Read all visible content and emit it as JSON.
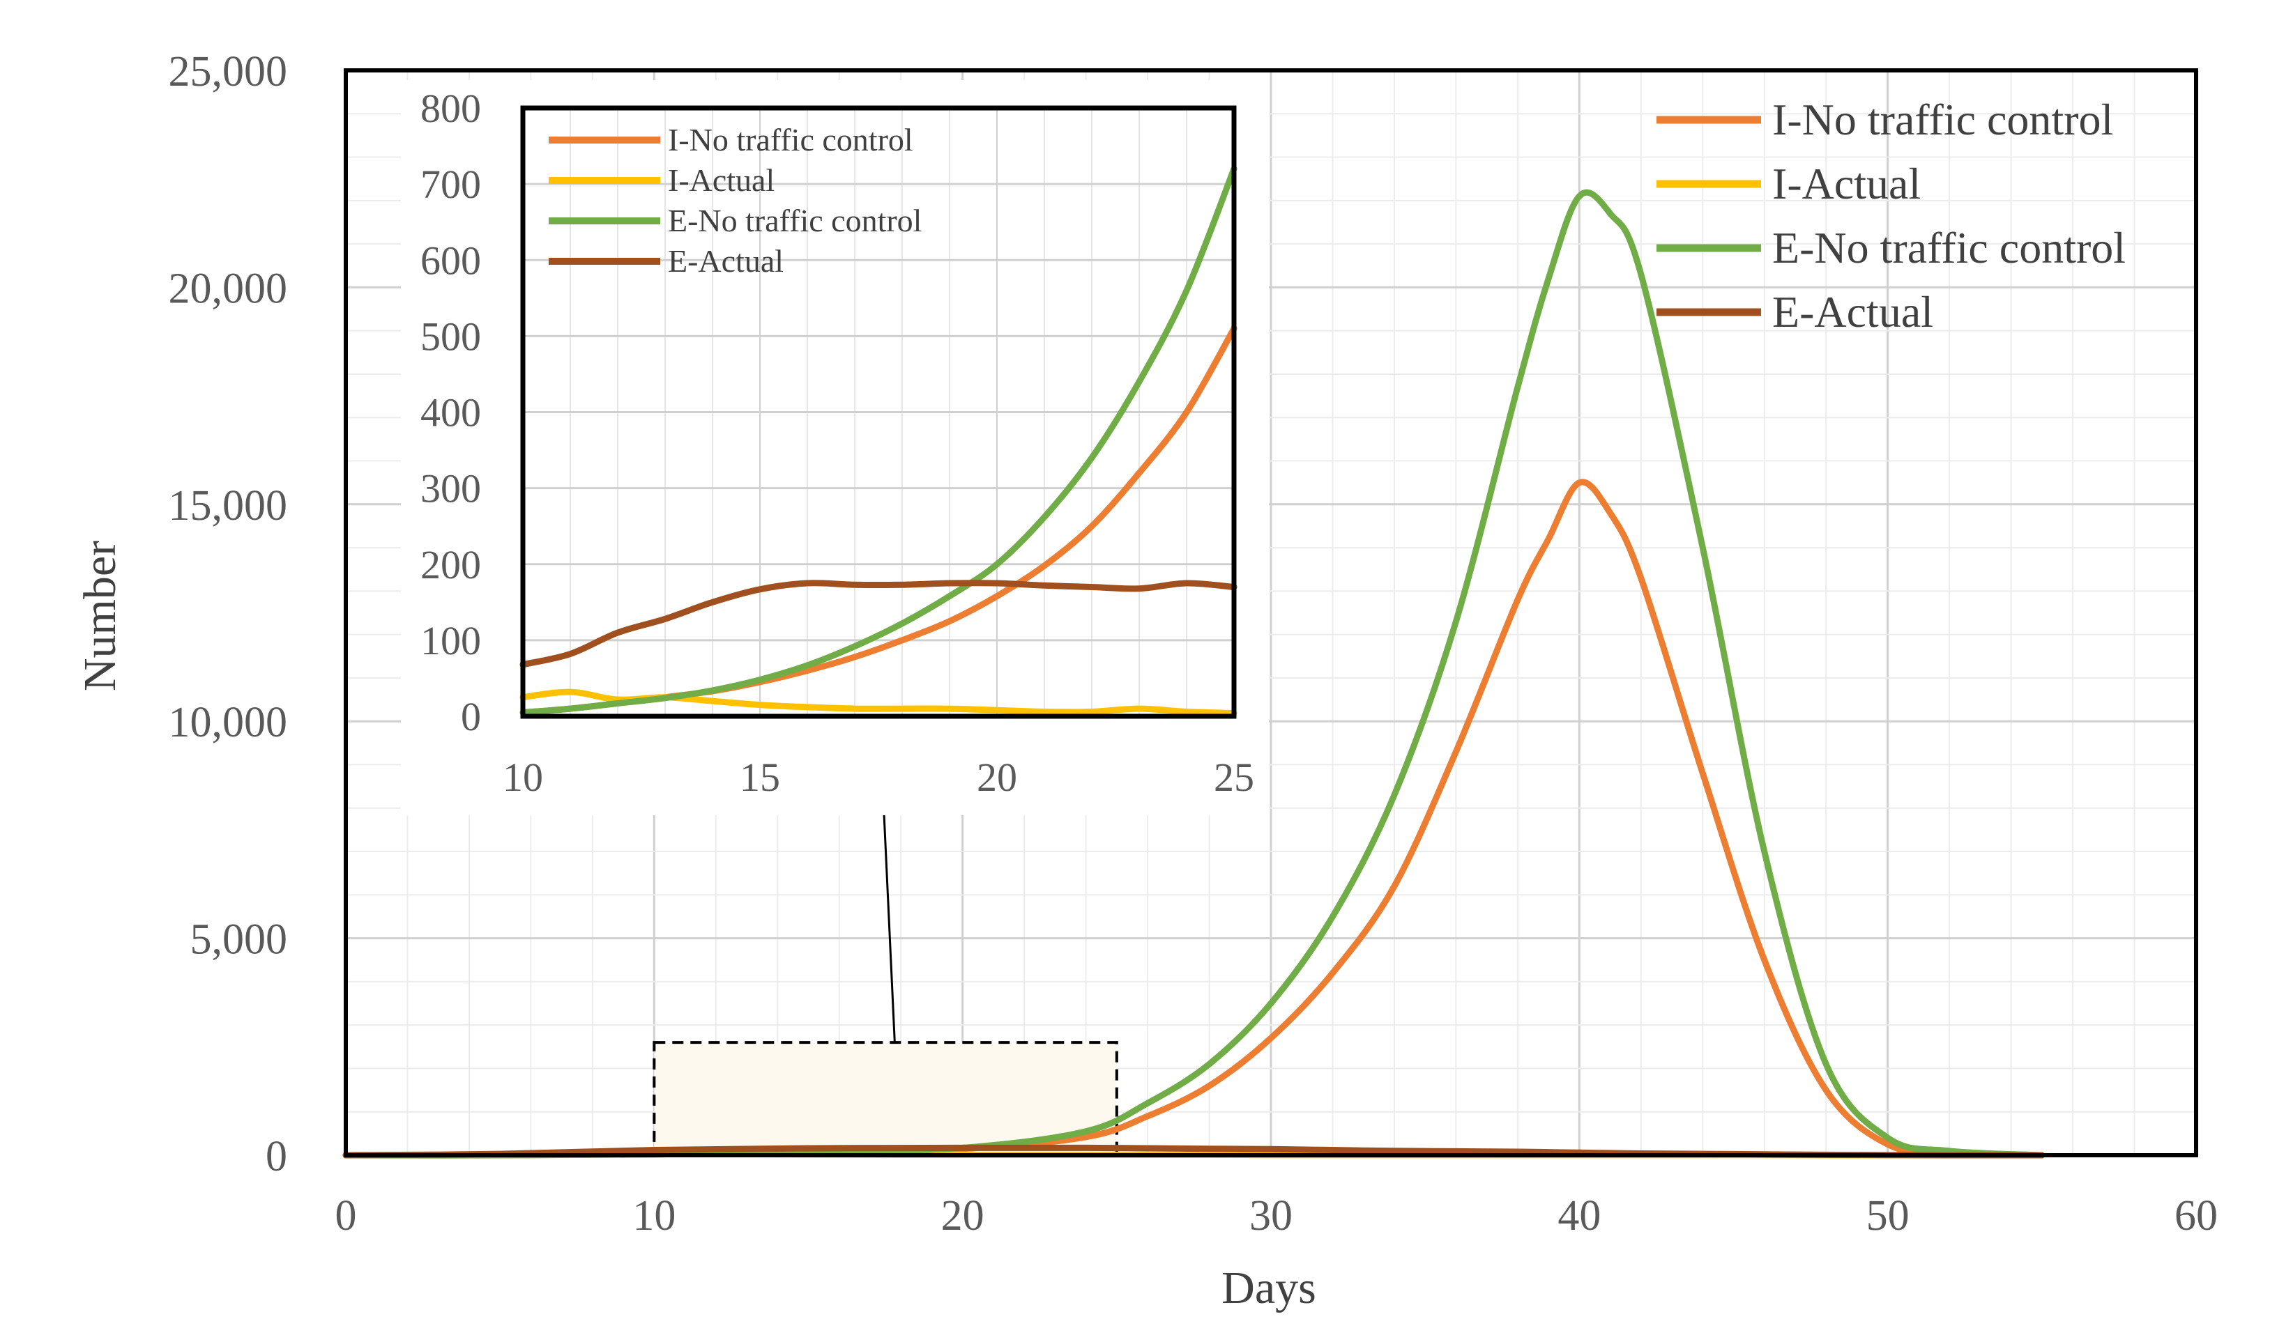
{
  "chart_data": [
    {
      "id": "main",
      "type": "line",
      "title": "",
      "xlabel": "Days",
      "ylabel": "Number",
      "xlim": [
        0,
        60
      ],
      "ylim": [
        0,
        25000
      ],
      "xticks": [
        0,
        10,
        20,
        30,
        40,
        50,
        60
      ],
      "xtick_labels": [
        "0",
        "10",
        "20",
        "30",
        "40",
        "50",
        "60"
      ],
      "yticks": [
        0,
        5000,
        10000,
        15000,
        20000,
        25000
      ],
      "ytick_labels": [
        "0",
        "5,000",
        "10,000",
        "15,000",
        "20,000",
        "25,000"
      ],
      "grid": true,
      "legend_position": "top-right",
      "zoom_region": {
        "x": [
          10,
          25
        ],
        "y": [
          0,
          2600
        ]
      },
      "x": [
        0,
        5,
        10,
        15,
        20,
        24,
        26,
        28,
        30,
        32,
        34,
        36,
        38,
        39,
        40,
        41,
        42,
        44,
        46,
        48,
        50,
        52,
        55
      ],
      "series": [
        {
          "name": "I-No traffic control",
          "color": "#ED7D31",
          "values": [
            0,
            0,
            20,
            70,
            150,
            420,
            900,
            1600,
            2700,
            4200,
            6200,
            9300,
            12800,
            14200,
            15500,
            14800,
            13300,
            8800,
            4500,
            1500,
            250,
            50,
            0
          ]
        },
        {
          "name": "I-Actual",
          "color": "#FFC000",
          "values": [
            0,
            0,
            30,
            20,
            10,
            10,
            10,
            10,
            5,
            5,
            5,
            5,
            5,
            5,
            5,
            5,
            5,
            5,
            5,
            0,
            0,
            0,
            0
          ]
        },
        {
          "name": "E-No traffic control",
          "color": "#70AD47",
          "values": [
            0,
            0,
            20,
            70,
            170,
            550,
            1200,
            2100,
            3500,
            5500,
            8300,
            12300,
            17700,
            20200,
            22100,
            21700,
            20300,
            14000,
            7000,
            2100,
            400,
            100,
            0
          ]
        },
        {
          "name": "E-Actual",
          "color": "#A0501E",
          "values": [
            0,
            30,
            120,
            160,
            170,
            170,
            160,
            150,
            140,
            120,
            100,
            90,
            80,
            70,
            60,
            50,
            40,
            30,
            20,
            10,
            5,
            0,
            0
          ]
        }
      ]
    },
    {
      "id": "inset",
      "type": "line",
      "title": "",
      "xlabel": "",
      "ylabel": "",
      "xlim": [
        10,
        25
      ],
      "ylim": [
        0,
        800
      ],
      "xticks": [
        10,
        15,
        20,
        25
      ],
      "xtick_labels": [
        "10",
        "15",
        "20",
        "25"
      ],
      "yticks": [
        0,
        100,
        200,
        300,
        400,
        500,
        600,
        700,
        800
      ],
      "ytick_labels": [
        "0",
        "100",
        "200",
        "300",
        "400",
        "500",
        "600",
        "700",
        "800"
      ],
      "grid": true,
      "legend_position": "top-left",
      "x": [
        10,
        11,
        12,
        13,
        14,
        15,
        16,
        17,
        18,
        19,
        20,
        21,
        22,
        23,
        24,
        25
      ],
      "series": [
        {
          "name": "I-No traffic control",
          "color": "#ED7D31",
          "values": [
            5,
            10,
            17,
            25,
            33,
            45,
            60,
            78,
            100,
            125,
            158,
            198,
            250,
            320,
            400,
            510
          ]
        },
        {
          "name": "I-Actual",
          "color": "#FFC000",
          "values": [
            25,
            32,
            22,
            25,
            20,
            15,
            12,
            10,
            10,
            10,
            8,
            6,
            6,
            10,
            6,
            4
          ]
        },
        {
          "name": "E-No traffic control",
          "color": "#70AD47",
          "values": [
            5,
            10,
            17,
            24,
            34,
            48,
            67,
            92,
            122,
            158,
            200,
            262,
            340,
            440,
            560,
            720
          ]
        },
        {
          "name": "E-Actual",
          "color": "#A0501E",
          "values": [
            68,
            82,
            110,
            128,
            150,
            167,
            175,
            173,
            173,
            175,
            175,
            172,
            170,
            168,
            175,
            170
          ]
        }
      ]
    }
  ]
}
